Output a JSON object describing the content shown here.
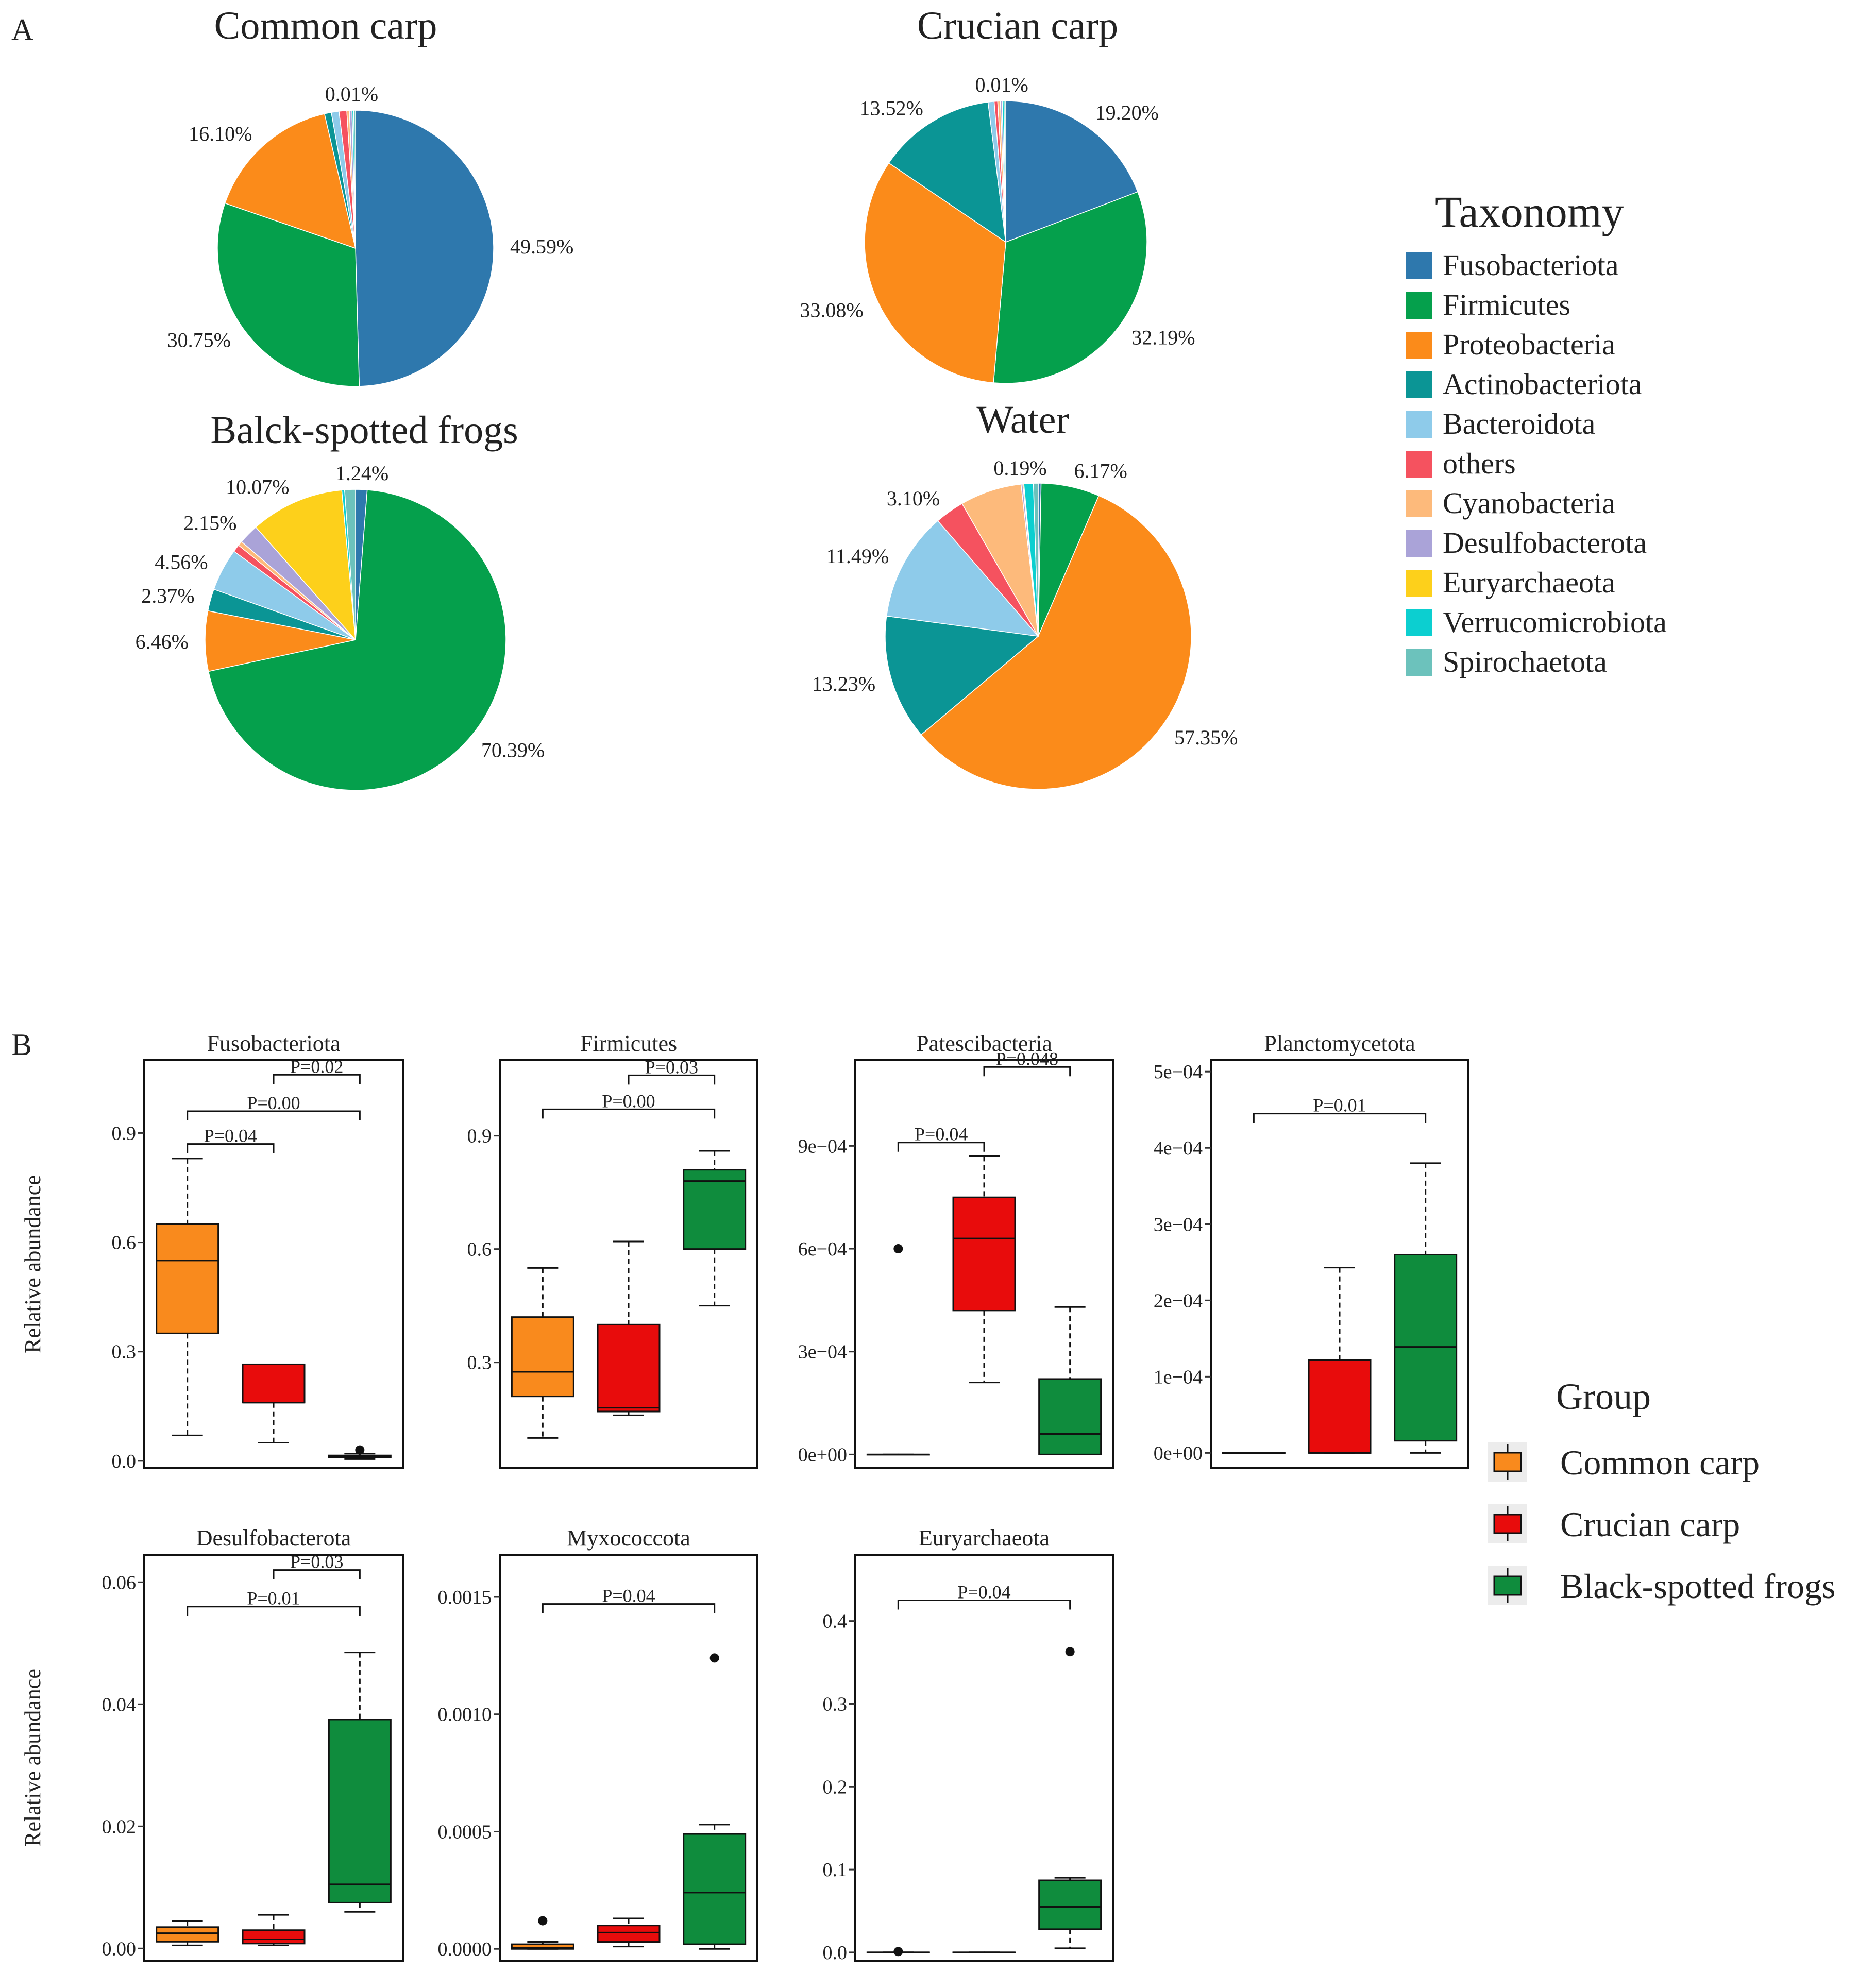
{
  "panel_labels": [
    "A",
    "B"
  ],
  "colors": {
    "Fusobacteriota": "#2e78ad",
    "Firmicutes": "#05a04c",
    "Proteobacteria": "#fb8b1a",
    "Actinobacteriota": "#0b9595",
    "Bacteroidota": "#8ecbea",
    "others": "#f5525f",
    "Cyanobacteria": "#fdba7b",
    "Desulfobacterota": "#aaa3d8",
    "Euryarchaeota": "#fdd01b",
    "Verrucomicrobiota": "#0ccfd0",
    "Spirochaetota": "#6cc2bc"
  },
  "group_colors": {
    "Common carp": "#f98a1d",
    "Crucian carp": "#e80c0c",
    "Black-spotted frogs": "#0f8c3d"
  },
  "legend_taxonomy": {
    "title": "Taxonomy",
    "items": [
      "Fusobacteriota",
      "Firmicutes",
      "Proteobacteria",
      "Actinobacteriota",
      "Bacteroidota",
      "others",
      "Cyanobacteria",
      "Desulfobacterota",
      "Euryarchaeota",
      "Verrucomicrobiota",
      "Spirochaetota"
    ]
  },
  "legend_group": {
    "title": "Group",
    "items": [
      "Common carp",
      "Crucian carp",
      "Black-spotted  frogs"
    ]
  },
  "chart_data": [
    {
      "type": "pie",
      "title": "Common carp",
      "slices": [
        {
          "taxon": "Fusobacteriota",
          "value": 49.59,
          "label": "49.59%"
        },
        {
          "taxon": "Firmicutes",
          "value": 30.75,
          "label": "30.75%"
        },
        {
          "taxon": "Proteobacteria",
          "value": 16.1,
          "label": "16.10%"
        },
        {
          "taxon": "Actinobacteriota",
          "value": 0.8,
          "label": ""
        },
        {
          "taxon": "Bacteroidota",
          "value": 0.9,
          "label": ""
        },
        {
          "taxon": "others",
          "value": 0.9,
          "label": ""
        },
        {
          "taxon": "Cyanobacteria",
          "value": 0.3,
          "label": ""
        },
        {
          "taxon": "Desulfobacterota",
          "value": 0.3,
          "label": ""
        },
        {
          "taxon": "Euryarchaeota",
          "value": 0.01,
          "label": "0.01%"
        },
        {
          "taxon": "Verrucomicrobiota",
          "value": 0.2,
          "label": ""
        },
        {
          "taxon": "Spirochaetota",
          "value": 0.2,
          "label": ""
        }
      ]
    },
    {
      "type": "pie",
      "title": "Crucian carp",
      "slices": [
        {
          "taxon": "Fusobacteriota",
          "value": 19.2,
          "label": "19.20%"
        },
        {
          "taxon": "Firmicutes",
          "value": 32.19,
          "label": "32.19%"
        },
        {
          "taxon": "Proteobacteria",
          "value": 33.08,
          "label": "33.08%"
        },
        {
          "taxon": "Actinobacteriota",
          "value": 13.52,
          "label": "13.52%"
        },
        {
          "taxon": "Bacteroidota",
          "value": 0.7,
          "label": ""
        },
        {
          "taxon": "others",
          "value": 0.4,
          "label": ""
        },
        {
          "taxon": "Cyanobacteria",
          "value": 0.3,
          "label": ""
        },
        {
          "taxon": "Desulfobacterota",
          "value": 0.2,
          "label": ""
        },
        {
          "taxon": "Euryarchaeota",
          "value": 0.01,
          "label": "0.01%"
        },
        {
          "taxon": "Verrucomicrobiota",
          "value": 0.2,
          "label": ""
        },
        {
          "taxon": "Spirochaetota",
          "value": 0.2,
          "label": ""
        }
      ]
    },
    {
      "type": "pie",
      "title": "Balck-spotted  frogs",
      "slices": [
        {
          "taxon": "Fusobacteriota",
          "value": 1.24,
          "label": "1.24%"
        },
        {
          "taxon": "Firmicutes",
          "value": 70.39,
          "label": "70.39%"
        },
        {
          "taxon": "Proteobacteria",
          "value": 6.46,
          "label": "6.46%"
        },
        {
          "taxon": "Actinobacteriota",
          "value": 2.37,
          "label": "2.37%"
        },
        {
          "taxon": "Bacteroidota",
          "value": 4.56,
          "label": "4.56%"
        },
        {
          "taxon": "others",
          "value": 0.8,
          "label": ""
        },
        {
          "taxon": "Cyanobacteria",
          "value": 0.5,
          "label": ""
        },
        {
          "taxon": "Desulfobacterota",
          "value": 2.15,
          "label": "2.15%"
        },
        {
          "taxon": "Euryarchaeota",
          "value": 10.07,
          "label": "10.07%"
        },
        {
          "taxon": "Verrucomicrobiota",
          "value": 0.3,
          "label": ""
        },
        {
          "taxon": "Spirochaetota",
          "value": 1.16,
          "label": ""
        }
      ]
    },
    {
      "type": "pie",
      "title": "Water",
      "slices": [
        {
          "taxon": "Fusobacteriota",
          "value": 0.3,
          "label": ""
        },
        {
          "taxon": "Firmicutes",
          "value": 6.17,
          "label": "6.17%"
        },
        {
          "taxon": "Proteobacteria",
          "value": 57.35,
          "label": "57.35%"
        },
        {
          "taxon": "Actinobacteriota",
          "value": 13.23,
          "label": "13.23%"
        },
        {
          "taxon": "Bacteroidota",
          "value": 11.49,
          "label": "11.49%"
        },
        {
          "taxon": "others",
          "value": 3.1,
          "label": "3.10%"
        },
        {
          "taxon": "Cyanobacteria",
          "value": 6.5,
          "label": ""
        },
        {
          "taxon": "Desulfobacterota",
          "value": 0.19,
          "label": "0.19%"
        },
        {
          "taxon": "Euryarchaeota",
          "value": 0.1,
          "label": ""
        },
        {
          "taxon": "Verrucomicrobiota",
          "value": 1.0,
          "label": ""
        },
        {
          "taxon": "Spirochaetota",
          "value": 0.5,
          "label": ""
        }
      ]
    },
    {
      "type": "box",
      "title": "Fusobacteriota",
      "ylabel": "Relative abundance",
      "ylim": [
        -0.02,
        1.1
      ],
      "yticks": [
        {
          "v": 0.0,
          "t": "0.0"
        },
        {
          "v": 0.3,
          "t": "0.3"
        },
        {
          "v": 0.6,
          "t": "0.6"
        },
        {
          "v": 0.9,
          "t": "0.9"
        }
      ],
      "boxes": [
        {
          "group": "Common carp",
          "min": 0.07,
          "q1": 0.35,
          "median": 0.55,
          "q3": 0.65,
          "max": 0.83,
          "outliers": []
        },
        {
          "group": "Crucian carp",
          "min": 0.05,
          "q1": 0.16,
          "median": 0.16,
          "q3": 0.265,
          "max": 0.265,
          "outliers": []
        },
        {
          "group": "Black-spotted frogs",
          "min": 0.005,
          "q1": 0.01,
          "median": 0.012,
          "q3": 0.015,
          "max": 0.02,
          "outliers": [
            0.03
          ]
        }
      ],
      "brackets": [
        {
          "a": 2,
          "b": 3,
          "y": 1.06,
          "label": "P=0.02"
        },
        {
          "a": 1,
          "b": 3,
          "y": 0.96,
          "label": "P=0.00"
        },
        {
          "a": 1,
          "b": 2,
          "y": 0.87,
          "label": "P=0.04"
        }
      ]
    },
    {
      "type": "box",
      "title": "Firmicutes",
      "ylabel": "",
      "ylim": [
        0.02,
        1.1
      ],
      "yticks": [
        {
          "v": 0.3,
          "t": "0.3"
        },
        {
          "v": 0.6,
          "t": "0.6"
        },
        {
          "v": 0.9,
          "t": "0.9"
        }
      ],
      "boxes": [
        {
          "group": "Common carp",
          "min": 0.1,
          "q1": 0.21,
          "median": 0.275,
          "q3": 0.42,
          "max": 0.55,
          "outliers": []
        },
        {
          "group": "Crucian carp",
          "min": 0.16,
          "q1": 0.17,
          "median": 0.18,
          "q3": 0.4,
          "max": 0.62,
          "outliers": []
        },
        {
          "group": "Black-spotted frogs",
          "min": 0.45,
          "q1": 0.6,
          "median": 0.78,
          "q3": 0.81,
          "max": 0.86,
          "outliers": []
        }
      ],
      "brackets": [
        {
          "a": 2,
          "b": 3,
          "y": 1.06,
          "label": "P=0.03"
        },
        {
          "a": 1,
          "b": 3,
          "y": 0.97,
          "label": "P=0.00"
        }
      ]
    },
    {
      "type": "box",
      "title": "Patescibacteria",
      "ylabel": "",
      "ylim": [
        -4e-05,
        0.00115
      ],
      "yticks": [
        {
          "v": 0,
          "t": "0e+00"
        },
        {
          "v": 0.0003,
          "t": "3e−04"
        },
        {
          "v": 0.0006,
          "t": "6e−04"
        },
        {
          "v": 0.0009,
          "t": "9e−04"
        }
      ],
      "boxes": [
        {
          "group": "Common carp",
          "min": 0,
          "q1": 0,
          "median": 0,
          "q3": 0,
          "max": 0,
          "outliers": [
            0.0006
          ]
        },
        {
          "group": "Crucian carp",
          "min": 0.00021,
          "q1": 0.00042,
          "median": 0.00063,
          "q3": 0.00075,
          "max": 0.00087,
          "outliers": []
        },
        {
          "group": "Black-spotted frogs",
          "min": 0,
          "q1": 0,
          "median": 6e-05,
          "q3": 0.00022,
          "max": 0.00043,
          "outliers": []
        }
      ],
      "brackets": [
        {
          "a": 2,
          "b": 3,
          "y": 0.00113,
          "label": "P=0.048"
        },
        {
          "a": 1,
          "b": 2,
          "y": 0.00091,
          "label": "P=0.04"
        }
      ]
    },
    {
      "type": "box",
      "title": "Planctomycetota",
      "ylabel": "",
      "ylim": [
        -2e-05,
        0.000515
      ],
      "yticks": [
        {
          "v": 0,
          "t": "0e+00"
        },
        {
          "v": 0.0001,
          "t": "1e−04"
        },
        {
          "v": 0.0002,
          "t": "2e−04"
        },
        {
          "v": 0.0003,
          "t": "3e−04"
        },
        {
          "v": 0.0004,
          "t": "4e−04"
        },
        {
          "v": 0.0005,
          "t": "5e−04"
        }
      ],
      "boxes": [
        {
          "group": "Common carp",
          "min": 0,
          "q1": 0,
          "median": 0,
          "q3": 0,
          "max": 0,
          "outliers": []
        },
        {
          "group": "Crucian carp",
          "min": 0,
          "q1": 0,
          "median": 0,
          "q3": 0.000122,
          "max": 0.000243,
          "outliers": []
        },
        {
          "group": "Black-spotted frogs",
          "min": 0,
          "q1": 1.6e-05,
          "median": 0.000139,
          "q3": 0.00026,
          "max": 0.00038,
          "outliers": []
        }
      ],
      "brackets": [
        {
          "a": 1,
          "b": 3,
          "y": 0.000445,
          "label": "P=0.01"
        }
      ]
    },
    {
      "type": "box",
      "title": "Desulfobacterota",
      "ylabel": "Relative abundance",
      "ylim": [
        -0.002,
        0.0645
      ],
      "yticks": [
        {
          "v": 0,
          "t": "0.00"
        },
        {
          "v": 0.02,
          "t": "0.02"
        },
        {
          "v": 0.04,
          "t": "0.04"
        },
        {
          "v": 0.06,
          "t": "0.06"
        }
      ],
      "boxes": [
        {
          "group": "Common carp",
          "min": 0.0005,
          "q1": 0.0011,
          "median": 0.0025,
          "q3": 0.0035,
          "max": 0.0045,
          "outliers": []
        },
        {
          "group": "Crucian carp",
          "min": 0.0005,
          "q1": 0.0008,
          "median": 0.0015,
          "q3": 0.003,
          "max": 0.0055,
          "outliers": []
        },
        {
          "group": "Black-spotted frogs",
          "min": 0.006,
          "q1": 0.0075,
          "median": 0.0105,
          "q3": 0.0375,
          "max": 0.0485,
          "outliers": []
        }
      ],
      "brackets": [
        {
          "a": 2,
          "b": 3,
          "y": 0.062,
          "label": "P=0.03"
        },
        {
          "a": 1,
          "b": 3,
          "y": 0.056,
          "label": "P=0.01"
        }
      ]
    },
    {
      "type": "box",
      "title": "Myxococcota",
      "ylabel": "",
      "ylim": [
        -5e-05,
        0.00168
      ],
      "yticks": [
        {
          "v": 0,
          "t": "0.0000"
        },
        {
          "v": 0.0005,
          "t": "0.0005"
        },
        {
          "v": 0.001,
          "t": "0.0010"
        },
        {
          "v": 0.0015,
          "t": "0.0015"
        }
      ],
      "boxes": [
        {
          "group": "Common carp",
          "min": 0,
          "q1": 0,
          "median": 5e-06,
          "q3": 2e-05,
          "max": 3e-05,
          "outliers": [
            0.00012
          ]
        },
        {
          "group": "Crucian carp",
          "min": 1e-05,
          "q1": 3e-05,
          "median": 7e-05,
          "q3": 0.0001,
          "max": 0.00013,
          "outliers": []
        },
        {
          "group": "Black-spotted frogs",
          "min": 0,
          "q1": 2e-05,
          "median": 0.00024,
          "q3": 0.00049,
          "max": 0.00053,
          "outliers": [
            0.00124
          ]
        }
      ],
      "brackets": [
        {
          "a": 1,
          "b": 3,
          "y": 0.00147,
          "label": "P=0.04"
        }
      ]
    },
    {
      "type": "box",
      "title": "Euryarchaeota",
      "ylabel": "",
      "ylim": [
        -0.01,
        0.48
      ],
      "yticks": [
        {
          "v": 0,
          "t": "0.0"
        },
        {
          "v": 0.1,
          "t": "0.1"
        },
        {
          "v": 0.2,
          "t": "0.2"
        },
        {
          "v": 0.3,
          "t": "0.3"
        },
        {
          "v": 0.4,
          "t": "0.4"
        }
      ],
      "boxes": [
        {
          "group": "Common carp",
          "min": 0,
          "q1": 0,
          "median": 0,
          "q3": 0,
          "max": 0,
          "outliers": [
            0.001
          ]
        },
        {
          "group": "Crucian carp",
          "min": 0,
          "q1": 0,
          "median": 0,
          "q3": 0,
          "max": 0,
          "outliers": []
        },
        {
          "group": "Black-spotted frogs",
          "min": 0.005,
          "q1": 0.028,
          "median": 0.055,
          "q3": 0.087,
          "max": 0.09,
          "outliers": [
            0.363
          ]
        }
      ],
      "brackets": [
        {
          "a": 1,
          "b": 3,
          "y": 0.425,
          "label": "P=0.04"
        }
      ]
    }
  ]
}
